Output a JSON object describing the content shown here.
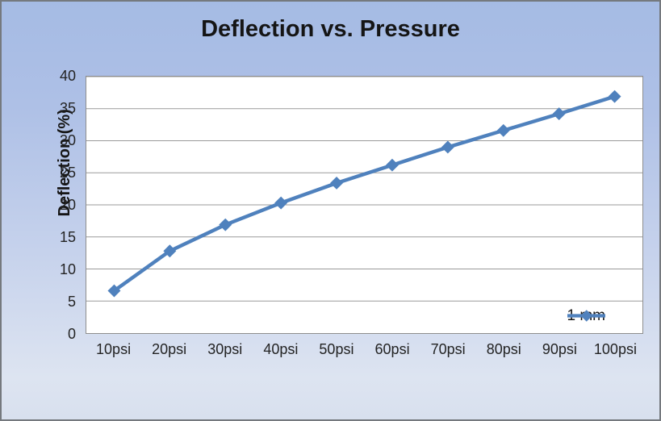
{
  "chart_data": {
    "type": "line",
    "title": "Deflection vs. Pressure",
    "xlabel": "",
    "ylabel": "Deflection (%)",
    "categories": [
      "10psi",
      "20psi",
      "30psi",
      "40psi",
      "50psi",
      "60psi",
      "70psi",
      "80psi",
      "90psi",
      "100psi"
    ],
    "series": [
      {
        "name": "1 mm",
        "values": [
          6.6,
          12.8,
          16.9,
          20.3,
          23.4,
          26.2,
          29.0,
          31.6,
          34.2,
          36.9
        ],
        "color": "#4f81bd",
        "marker": "diamond"
      }
    ],
    "ylim": [
      0,
      40
    ],
    "yticks": [
      0,
      5,
      10,
      15,
      20,
      25,
      30,
      35,
      40
    ],
    "grid": "horizontal-major",
    "gridline_color": "#9a9a9a",
    "plot_border_color": "#8e8e8e",
    "plot_bg": "#ffffff",
    "chart_bg_top": "#a5bbe4",
    "chart_bg_bottom": "#dde4f1",
    "legend_position": "inside-bottom-right"
  }
}
